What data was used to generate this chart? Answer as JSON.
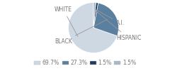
{
  "labels": [
    "WHITE",
    "BLACK",
    "A.I.",
    "HISPANIC"
  ],
  "values": [
    69.7,
    27.3,
    1.5,
    1.5
  ],
  "colors": [
    "#cdd8e3",
    "#5b7f9e",
    "#1e3a5f",
    "#a8b8c5"
  ],
  "legend_labels": [
    "69.7%",
    "27.3%",
    "1.5%",
    "1.5%"
  ],
  "startangle": 90,
  "label_fontsize": 5.5,
  "legend_fontsize": 5.5,
  "text_color": "#777777",
  "line_color": "#999999"
}
